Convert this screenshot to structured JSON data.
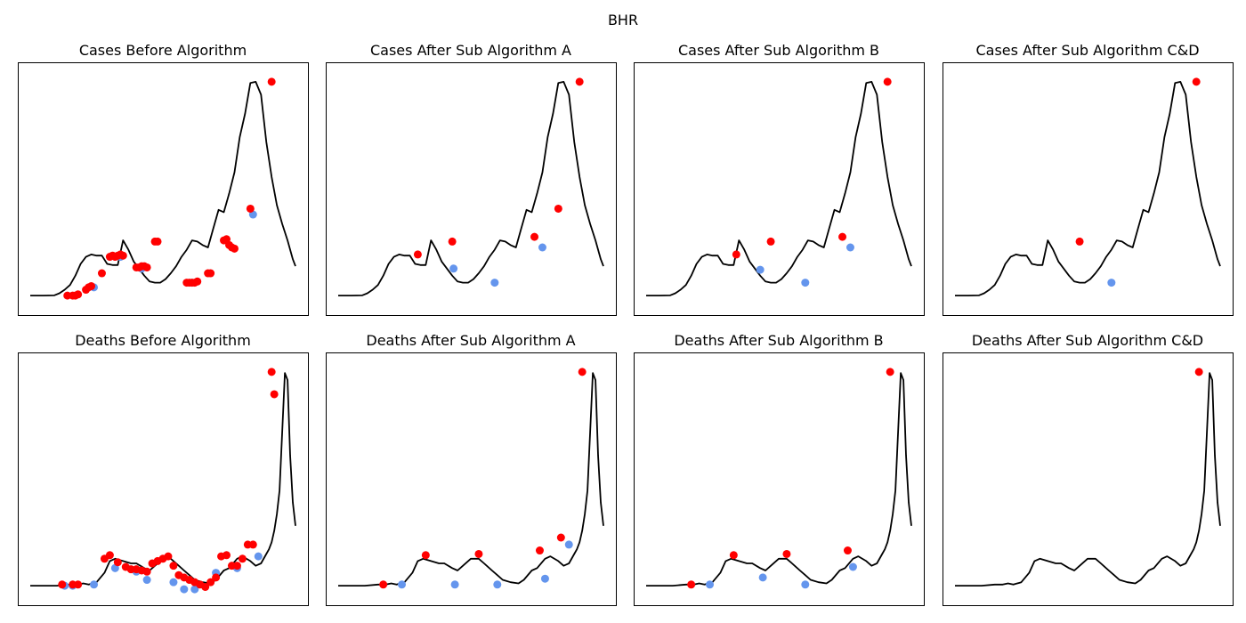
{
  "suptitle": "BHR",
  "colors": {
    "line": "#000000",
    "peak": "#ff0000",
    "trough": "#6495ed"
  },
  "chart_data": [
    {
      "type": "line",
      "title": "Cases Before Algorithm",
      "xlim": [
        0,
        100
      ],
      "ylim": [
        0,
        100
      ],
      "x": [
        0,
        5,
        9,
        11,
        13,
        15,
        17,
        19,
        21,
        23,
        25,
        27,
        29,
        31,
        33,
        35,
        37,
        39,
        41,
        43,
        45,
        47,
        49,
        51,
        53,
        55,
        57,
        59,
        61,
        63,
        65,
        67,
        69,
        71,
        73,
        75,
        77,
        79,
        81,
        83,
        85,
        87,
        89,
        91,
        93,
        95,
        97,
        99,
        100
      ],
      "values": [
        4.5,
        4.5,
        4.6,
        5.5,
        7,
        9,
        13,
        18,
        21,
        22,
        21.5,
        21.5,
        18,
        17.5,
        17.5,
        28,
        24,
        19,
        16,
        13,
        10.5,
        10,
        10,
        11.5,
        14,
        17,
        21,
        24,
        28,
        27.5,
        26,
        25,
        33,
        41,
        40,
        48,
        57,
        72,
        82,
        95,
        95.5,
        90,
        70,
        55,
        43,
        35,
        28,
        20,
        17
      ],
      "peaks_x": [
        14,
        16,
        17,
        18,
        21,
        22,
        23,
        25,
        26,
        27,
        28,
        30,
        31,
        32,
        33,
        34,
        35,
        36,
        37,
        38,
        57,
        58,
        59,
        60,
        61,
        68,
        69,
        70,
        71,
        72,
        78,
        91
      ],
      "troughs_x": [
        15,
        19,
        20,
        29,
        32,
        36,
        45,
        46,
        47,
        48,
        49,
        57,
        64,
        79
      ],
      "peaks_visible": [
        {
          "x": 14,
          "y": 4.5
        },
        {
          "x": 16,
          "y": 4.5
        },
        {
          "x": 17,
          "y": 4.5
        },
        {
          "x": 18,
          "y": 5
        },
        {
          "x": 21,
          "y": 7
        },
        {
          "x": 22,
          "y": 8
        },
        {
          "x": 23,
          "y": 8.5
        },
        {
          "x": 27,
          "y": 14
        },
        {
          "x": 30,
          "y": 21
        },
        {
          "x": 31,
          "y": 21.5
        },
        {
          "x": 32,
          "y": 21
        },
        {
          "x": 33,
          "y": 21.5
        },
        {
          "x": 34,
          "y": 22
        },
        {
          "x": 35,
          "y": 21.5
        },
        {
          "x": 40,
          "y": 16.5
        },
        {
          "x": 41,
          "y": 16.5
        },
        {
          "x": 42,
          "y": 17
        },
        {
          "x": 43,
          "y": 17
        },
        {
          "x": 44,
          "y": 16.5
        },
        {
          "x": 47,
          "y": 27.5
        },
        {
          "x": 48,
          "y": 27.5
        },
        {
          "x": 59,
          "y": 10
        },
        {
          "x": 60,
          "y": 10
        },
        {
          "x": 61,
          "y": 10
        },
        {
          "x": 62,
          "y": 10
        },
        {
          "x": 63,
          "y": 10.5
        },
        {
          "x": 67,
          "y": 14
        },
        {
          "x": 68,
          "y": 14
        },
        {
          "x": 73,
          "y": 28
        },
        {
          "x": 74,
          "y": 28.5
        },
        {
          "x": 75,
          "y": 26
        },
        {
          "x": 76,
          "y": 25
        },
        {
          "x": 77,
          "y": 24.5
        },
        {
          "x": 83,
          "y": 41.5
        },
        {
          "x": 91,
          "y": 95.5
        }
      ],
      "troughs_visible": [
        {
          "x": 24,
          "y": 8
        },
        {
          "x": 34,
          "y": 21
        },
        {
          "x": 42,
          "y": 16
        },
        {
          "x": 61,
          "y": 10
        },
        {
          "x": 84,
          "y": 39
        }
      ]
    },
    {
      "type": "line",
      "title": "Cases After Sub Algorithm A",
      "xlim": [
        0,
        100
      ],
      "ylim": [
        0,
        100
      ],
      "peaks_visible": [
        {
          "x": 30,
          "y": 22
        },
        {
          "x": 43,
          "y": 27.5
        },
        {
          "x": 74,
          "y": 29.5
        },
        {
          "x": 83,
          "y": 41.5
        },
        {
          "x": 91,
          "y": 95.5
        }
      ],
      "troughs_visible": [
        {
          "x": 43.5,
          "y": 16
        },
        {
          "x": 59,
          "y": 10
        },
        {
          "x": 77,
          "y": 25
        }
      ]
    },
    {
      "type": "line",
      "title": "Cases After Sub Algorithm B",
      "xlim": [
        0,
        100
      ],
      "ylim": [
        0,
        100
      ],
      "peaks_visible": [
        {
          "x": 34,
          "y": 22
        },
        {
          "x": 47,
          "y": 27.5
        },
        {
          "x": 74,
          "y": 29.5
        },
        {
          "x": 91,
          "y": 95.5
        }
      ],
      "troughs_visible": [
        {
          "x": 43,
          "y": 15.5
        },
        {
          "x": 60,
          "y": 10
        },
        {
          "x": 77,
          "y": 25
        }
      ]
    },
    {
      "type": "line",
      "title": "Cases After Sub Algorithm C&D",
      "xlim": [
        0,
        100
      ],
      "ylim": [
        0,
        100
      ],
      "peaks_visible": [
        {
          "x": 47,
          "y": 27.5
        },
        {
          "x": 91,
          "y": 95.5
        }
      ],
      "troughs_visible": [
        {
          "x": 59,
          "y": 10
        }
      ]
    },
    {
      "type": "line",
      "title": "Deaths Before Algorithm",
      "xlim": [
        0,
        100
      ],
      "ylim": [
        0,
        100
      ],
      "x": [
        0,
        10,
        15,
        18,
        20,
        22,
        25,
        28,
        30,
        32,
        35,
        38,
        40,
        43,
        45,
        47,
        50,
        53,
        55,
        58,
        60,
        62,
        65,
        68,
        70,
        73,
        75,
        78,
        80,
        83,
        85,
        87,
        89,
        90,
        91,
        92,
        93,
        94,
        95,
        96,
        97,
        98,
        99,
        100
      ],
      "values": [
        4.5,
        4.5,
        5,
        5,
        5.5,
        5,
        6,
        10,
        15,
        16,
        15,
        14,
        14,
        12,
        11,
        13,
        16,
        16,
        14,
        11,
        9,
        7,
        6,
        5.5,
        7,
        11,
        12,
        16,
        17,
        15,
        13,
        14,
        18,
        20,
        23,
        28,
        35,
        45,
        70,
        95,
        92,
        60,
        40,
        30
      ],
      "peaks_visible": [
        {
          "x": 12,
          "y": 5
        },
        {
          "x": 16,
          "y": 5
        },
        {
          "x": 18,
          "y": 5
        },
        {
          "x": 28,
          "y": 16
        },
        {
          "x": 30,
          "y": 17.5
        },
        {
          "x": 33,
          "y": 14.5
        },
        {
          "x": 36,
          "y": 12.5
        },
        {
          "x": 38,
          "y": 11.5
        },
        {
          "x": 40,
          "y": 11.5
        },
        {
          "x": 42,
          "y": 11
        },
        {
          "x": 44,
          "y": 10.5
        },
        {
          "x": 46,
          "y": 14
        },
        {
          "x": 48,
          "y": 15
        },
        {
          "x": 50,
          "y": 16
        },
        {
          "x": 52,
          "y": 17
        },
        {
          "x": 54,
          "y": 13
        },
        {
          "x": 56,
          "y": 9
        },
        {
          "x": 58,
          "y": 8
        },
        {
          "x": 60,
          "y": 7
        },
        {
          "x": 62,
          "y": 6
        },
        {
          "x": 64,
          "y": 5
        },
        {
          "x": 66,
          "y": 4
        },
        {
          "x": 68,
          "y": 6
        },
        {
          "x": 70,
          "y": 8
        },
        {
          "x": 72,
          "y": 17
        },
        {
          "x": 74,
          "y": 17.5
        },
        {
          "x": 76,
          "y": 13
        },
        {
          "x": 78,
          "y": 13
        },
        {
          "x": 80,
          "y": 16
        },
        {
          "x": 82,
          "y": 22
        },
        {
          "x": 84,
          "y": 22
        },
        {
          "x": 91,
          "y": 95.5
        },
        {
          "x": 92,
          "y": 86
        }
      ],
      "troughs_visible": [
        {
          "x": 13,
          "y": 4.5
        },
        {
          "x": 16,
          "y": 4.5
        },
        {
          "x": 24,
          "y": 5
        },
        {
          "x": 32,
          "y": 12
        },
        {
          "x": 40,
          "y": 10.5
        },
        {
          "x": 44,
          "y": 7
        },
        {
          "x": 54,
          "y": 6
        },
        {
          "x": 58,
          "y": 3
        },
        {
          "x": 62,
          "y": 3
        },
        {
          "x": 70,
          "y": 10
        },
        {
          "x": 78,
          "y": 12
        },
        {
          "x": 86,
          "y": 17
        }
      ]
    },
    {
      "type": "line",
      "title": "Deaths After Sub Algorithm A",
      "xlim": [
        0,
        100
      ],
      "ylim": [
        0,
        100
      ],
      "peaks_visible": [
        {
          "x": 17,
          "y": 5
        },
        {
          "x": 33,
          "y": 17.5
        },
        {
          "x": 53,
          "y": 18
        },
        {
          "x": 76,
          "y": 19.5
        },
        {
          "x": 84,
          "y": 25
        },
        {
          "x": 92,
          "y": 95.5
        }
      ],
      "troughs_visible": [
        {
          "x": 24,
          "y": 5
        },
        {
          "x": 44,
          "y": 5
        },
        {
          "x": 60,
          "y": 5
        },
        {
          "x": 78,
          "y": 7.5
        },
        {
          "x": 87,
          "y": 22
        }
      ]
    },
    {
      "type": "line",
      "title": "Deaths After Sub Algorithm B",
      "xlim": [
        0,
        100
      ],
      "ylim": [
        0,
        100
      ],
      "peaks_visible": [
        {
          "x": 17,
          "y": 5
        },
        {
          "x": 33,
          "y": 17.5
        },
        {
          "x": 53,
          "y": 18
        },
        {
          "x": 76,
          "y": 19.5
        },
        {
          "x": 92,
          "y": 95.5
        }
      ],
      "troughs_visible": [
        {
          "x": 24,
          "y": 5
        },
        {
          "x": 44,
          "y": 8
        },
        {
          "x": 60,
          "y": 5
        },
        {
          "x": 78,
          "y": 12.5
        }
      ]
    },
    {
      "type": "line",
      "title": "Deaths After Sub Algorithm C&D",
      "xlim": [
        0,
        100
      ],
      "ylim": [
        0,
        100
      ],
      "peaks_visible": [
        {
          "x": 92,
          "y": 95.5
        }
      ],
      "troughs_visible": []
    }
  ]
}
